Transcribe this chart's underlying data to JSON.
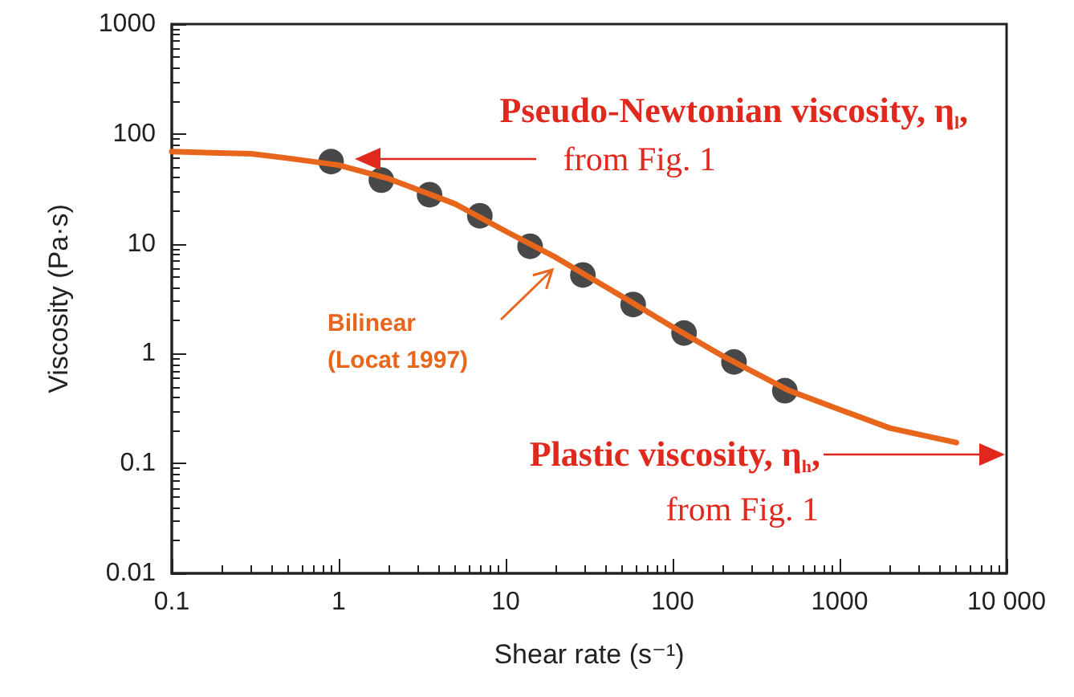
{
  "chart_data": {
    "type": "scatter",
    "xlabel": "Shear rate (s⁻¹)",
    "ylabel": "Viscosity (Pa·s)",
    "log": "xy",
    "grid": false,
    "legend": false,
    "marker": "circle",
    "xlim": [
      0.1,
      10000
    ],
    "xticks": [
      0.1,
      1,
      10,
      100,
      1000,
      {
        "value": 10000,
        "label": "10 000"
      }
    ],
    "ylim": [
      0.01,
      1000
    ],
    "yticks": [
      0.01,
      0.1,
      1,
      10,
      100,
      1000
    ],
    "series": [
      {
        "color": "#1a1a1a",
        "x": [
          0.9,
          1.8,
          3.5,
          7,
          14,
          29,
          58,
          117,
          233,
          470
        ],
        "values": [
          56,
          38,
          28,
          18,
          9.5,
          5.2,
          2.8,
          1.54,
          0.84,
          0.46
        ]
      },
      {
        "type": "line",
        "name": "Bilinear (Locat 1997)",
        "color": "#e8661c",
        "marker": "none",
        "line_style": "solid",
        "x": [
          0.1,
          0.3,
          0.5,
          1,
          2,
          5,
          10,
          20,
          50,
          100,
          200,
          500,
          1000,
          2000,
          5000
        ],
        "values": [
          69,
          66,
          60,
          52,
          39,
          23,
          13,
          7.5,
          3.3,
          1.75,
          0.95,
          0.46,
          0.31,
          0.21,
          0.155
        ]
      }
    ],
    "annotations": [
      "Pseudo-Newtonian viscosity, η$_{l}$,",
      "from Fig. 1",
      "Plastic viscosity, η$_{h}$,",
      "from Fig. 1"
    ]
  }
}
